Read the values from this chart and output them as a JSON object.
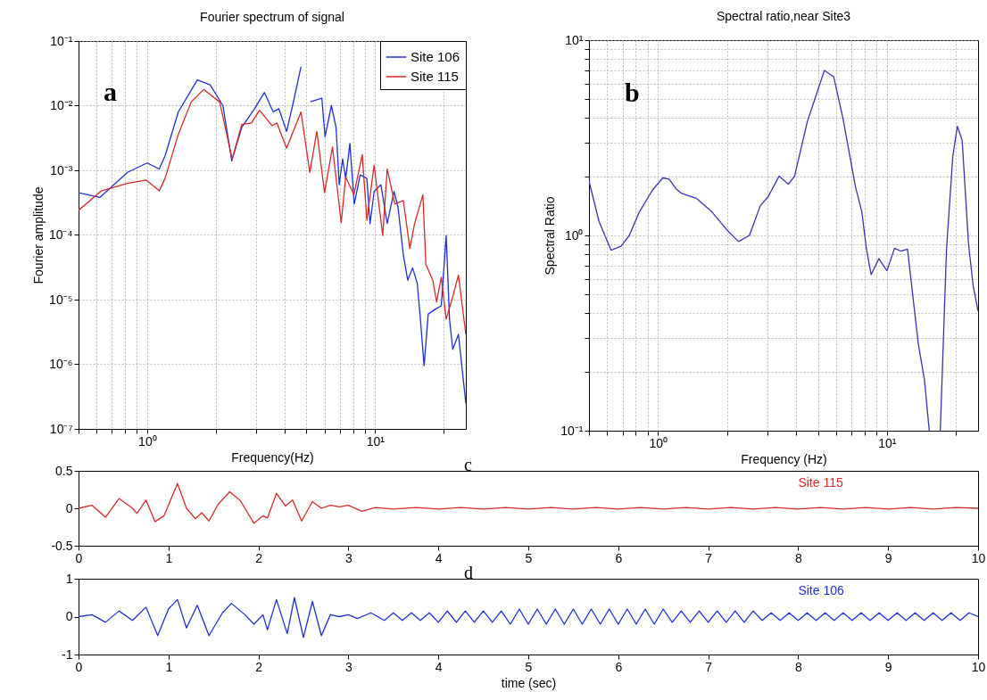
{
  "chart_data": [
    {
      "type": "line",
      "title": "Fourier spectrum of signal",
      "xlabel": "Frequency(Hz)",
      "ylabel": "Fourier amplitude",
      "log": "xy",
      "grid": true,
      "legend": "top right",
      "annotations": [
        "a"
      ],
      "xlim": [
        0.5,
        25
      ],
      "ylim": [
        1e-07,
        0.1
      ],
      "xticks": [
        {
          "value": 0.5,
          "label": null
        },
        {
          "value": 0.6,
          "label": null
        },
        {
          "value": 0.7,
          "label": null
        },
        {
          "value": 0.8,
          "label": null
        },
        {
          "value": 0.9,
          "label": null
        },
        {
          "value": 1,
          "label": "10⁰"
        },
        {
          "value": 2,
          "label": null
        },
        {
          "value": 3,
          "label": null
        },
        {
          "value": 4,
          "label": null
        },
        {
          "value": 5,
          "label": null
        },
        {
          "value": 6,
          "label": null
        },
        {
          "value": 7,
          "label": null
        },
        {
          "value": 8,
          "label": null
        },
        {
          "value": 9,
          "label": null
        },
        {
          "value": 10,
          "label": "10¹"
        },
        {
          "value": 20,
          "label": null
        }
      ],
      "yticks": [
        {
          "value": 1e-07,
          "label": "10⁻⁷"
        },
        {
          "value": 1e-06,
          "label": "10⁻⁶"
        },
        {
          "value": 1e-05,
          "label": "10⁻⁵"
        },
        {
          "value": 0.0001,
          "label": "10⁻⁴"
        },
        {
          "value": 0.001,
          "label": "10⁻³"
        },
        {
          "value": 0.01,
          "label": "10⁻²"
        },
        {
          "value": 0.1,
          "label": "10⁻¹"
        }
      ],
      "series": [
        {
          "name": "Site 106",
          "color": "#1f2fd0",
          "x": [
            0.5,
            0.62,
            0.82,
            1.0,
            1.13,
            1.2,
            1.37,
            1.66,
            1.89,
            2.15,
            2.35,
            2.6,
            2.96,
            3.27,
            3.57,
            3.78,
            4.09,
            4.37,
            4.73,
            5.0,
            5.2,
            5.84,
            6.03,
            6.43,
            6.74,
            6.96,
            7.2,
            7.43,
            7.75,
            8.1,
            8.6,
            9.2,
            9.5,
            9.9,
            10.6,
            11.3,
            12.1,
            12.6,
            13.3,
            13.9,
            14.6,
            15.3,
            15.8,
            16.4,
            17.1,
            18.6,
            19.5,
            20.5,
            21.2,
            21.9,
            23.2,
            25
          ],
          "values": [
            0.00045,
            0.00038,
            0.00093,
            0.0013,
            0.00105,
            0.0017,
            0.008,
            0.025,
            0.021,
            0.01,
            0.0014,
            0.0046,
            0.009,
            0.016,
            0.008,
            0.009,
            0.004,
            0.011,
            0.04,
            null,
            0.0115,
            0.013,
            0.0033,
            0.01,
            0.0046,
            0.0006,
            0.0015,
            0.00075,
            0.0026,
            0.0003,
            0.00085,
            0.00075,
            0.00015,
            0.00047,
            0.0006,
            0.00015,
            0.00047,
            0.00027,
            4.9e-05,
            2e-05,
            3.1e-05,
            1.8e-05,
            5e-06,
            9.5e-07,
            6e-06,
            7.3e-06,
            8e-06,
            9.8e-05,
            5e-06,
            1.7e-06,
            2.9e-06,
            2.5e-07
          ]
        },
        {
          "name": "Site 115",
          "color": "#d42a2a",
          "x": [
            0.5,
            0.63,
            0.82,
            0.99,
            1.13,
            1.2,
            1.37,
            1.56,
            1.77,
            2.08,
            2.36,
            2.6,
            2.87,
            3.11,
            3.53,
            3.71,
            4.09,
            4.73,
            5.17,
            5.55,
            6.0,
            6.5,
            7.1,
            7.43,
            8.07,
            8.78,
            9.2,
            9.9,
            10.8,
            11.3,
            12.2,
            13.3,
            14.2,
            14.9,
            16.2,
            16.7,
            17.9,
            18.6,
            19.5,
            20.5,
            21.9,
            23.2,
            25
          ],
          "values": [
            0.00024,
            0.00048,
            0.00063,
            0.00071,
            0.00048,
            0.00076,
            0.0036,
            0.0114,
            0.0178,
            0.0114,
            0.0015,
            0.0051,
            0.0054,
            0.0085,
            0.0049,
            0.0054,
            0.0022,
            0.008,
            0.00093,
            0.004,
            0.00045,
            0.0023,
            0.000155,
            0.00079,
            0.00042,
            0.00175,
            0.00017,
            0.0012,
            9.8e-05,
            0.00105,
            0.0003,
            0.00034,
            6.2e-05,
            0.00015,
            0.00042,
            3.5e-05,
            2e-05,
            9.2e-06,
            2.2e-05,
            5e-06,
            1.1e-05,
            2.4e-05,
            2.9e-06
          ]
        }
      ]
    },
    {
      "type": "line",
      "title": "Spectral ratio,near Site3",
      "xlabel": "Frequency (Hz)",
      "ylabel": "Spectral Ratio",
      "log": "xy",
      "grid": true,
      "annotations": [
        "b"
      ],
      "xlim": [
        0.5,
        25
      ],
      "ylim": [
        0.1,
        10
      ],
      "xticks": [
        {
          "value": 0.5,
          "label": null
        },
        {
          "value": 0.6,
          "label": null
        },
        {
          "value": 0.7,
          "label": null
        },
        {
          "value": 0.8,
          "label": null
        },
        {
          "value": 0.9,
          "label": null
        },
        {
          "value": 1,
          "label": "10⁰"
        },
        {
          "value": 2,
          "label": null
        },
        {
          "value": 3,
          "label": null
        },
        {
          "value": 4,
          "label": null
        },
        {
          "value": 5,
          "label": null
        },
        {
          "value": 6,
          "label": null
        },
        {
          "value": 7,
          "label": null
        },
        {
          "value": 8,
          "label": null
        },
        {
          "value": 9,
          "label": null
        },
        {
          "value": 10,
          "label": "10¹"
        },
        {
          "value": 20,
          "label": null
        }
      ],
      "yticks": [
        {
          "value": 0.1,
          "label": "10⁻¹"
        },
        {
          "value": 0.2,
          "label": null
        },
        {
          "value": 0.3,
          "label": null
        },
        {
          "value": 0.4,
          "label": null
        },
        {
          "value": 0.5,
          "label": null
        },
        {
          "value": 0.6,
          "label": null
        },
        {
          "value": 0.7,
          "label": null
        },
        {
          "value": 0.8,
          "label": null
        },
        {
          "value": 0.9,
          "label": null
        },
        {
          "value": 1,
          "label": "10⁰"
        },
        {
          "value": 2,
          "label": null
        },
        {
          "value": 3,
          "label": null
        },
        {
          "value": 4,
          "label": null
        },
        {
          "value": 5,
          "label": null
        },
        {
          "value": 6,
          "label": null
        },
        {
          "value": 7,
          "label": null
        },
        {
          "value": 8,
          "label": null
        },
        {
          "value": 9,
          "label": null
        },
        {
          "value": 10,
          "label": "10¹"
        }
      ],
      "x": [
        0.5,
        0.553,
        0.624,
        0.69,
        0.75,
        0.83,
        0.945,
        1.05,
        1.12,
        1.2,
        1.27,
        1.47,
        1.72,
        2.01,
        2.25,
        2.51,
        2.8,
        3.03,
        3.38,
        3.71,
        3.95,
        4.49,
        5.33,
        5.85,
        6.43,
        7.29,
        7.77,
        8.14,
        8.53,
        9.22,
        10.0,
        10.8,
        11.5,
        12.3,
        13.7,
        14.6,
        15.3,
        15.9,
        17.1,
        18.2,
        19.4,
        20.3,
        21.3,
        22.7,
        23.8,
        25
      ],
      "series": [
        {
          "color": "#3535b0",
          "values": [
            1.9,
            1.18,
            0.84,
            0.88,
            1.0,
            1.32,
            1.7,
            1.97,
            1.94,
            1.73,
            1.64,
            1.55,
            1.32,
            1.06,
            0.93,
            1.0,
            1.42,
            1.58,
            2.01,
            1.83,
            2.01,
            3.82,
            7.0,
            6.5,
            3.96,
            1.77,
            1.32,
            0.85,
            0.63,
            0.76,
            0.66,
            0.86,
            0.83,
            0.85,
            0.28,
            0.18,
            0.1,
            null,
            0.1,
            0.85,
            2.55,
            3.62,
            3.07,
            0.91,
            0.55,
            0.41
          ]
        }
      ]
    },
    {
      "type": "line",
      "annotations": [
        "c"
      ],
      "xlim": [
        0,
        10
      ],
      "ylim": [
        -0.5,
        0.5
      ],
      "xticks": [
        0,
        1,
        2,
        3,
        4,
        5,
        6,
        7,
        8,
        9,
        10
      ],
      "yticks": [
        -0.5,
        0,
        0.5
      ],
      "series": [
        {
          "name": "Site 115",
          "color": "#d42a2a",
          "x": [
            0,
            0.15,
            0.3,
            0.45,
            0.6,
            0.65,
            0.75,
            0.85,
            0.95,
            1.1,
            1.2,
            1.3,
            1.37,
            1.45,
            1.55,
            1.68,
            1.8,
            1.85,
            1.95,
            2.05,
            2.1,
            2.2,
            2.3,
            2.38,
            2.48,
            2.6,
            2.7,
            2.8,
            2.9,
            3.0,
            3.15,
            3.3,
            3.5,
            3.75,
            4.0,
            4.25,
            4.5,
            4.75,
            5.0,
            5.25,
            5.5,
            5.75,
            6.0,
            6.25,
            6.5,
            6.75,
            7.0,
            7.25,
            7.5,
            7.75,
            8.0,
            8.25,
            8.5,
            8.75,
            9.0,
            9.25,
            9.5,
            9.75,
            10
          ],
          "values": [
            0,
            0.04,
            -0.12,
            0.13,
            0.0,
            -0.07,
            0.11,
            -0.18,
            -0.1,
            0.33,
            0.0,
            -0.14,
            -0.06,
            -0.17,
            0.05,
            0.22,
            0.1,
            0.0,
            -0.2,
            -0.1,
            -0.13,
            0.2,
            0.03,
            0.11,
            -0.17,
            0.09,
            0.0,
            0.04,
            0.02,
            0.04,
            -0.04,
            0.01,
            -0.01,
            0.01,
            -0.01,
            0.01,
            -0.01,
            0.01,
            -0.01,
            0.01,
            -0.01,
            0.01,
            -0.01,
            0.01,
            -0.01,
            0.01,
            -0.01,
            0.01,
            -0.01,
            0.01,
            -0.01,
            0.01,
            -0.01,
            0.01,
            -0.01,
            0.01,
            -0.01,
            0.01,
            0
          ]
        }
      ]
    },
    {
      "type": "line",
      "xlabel": "time (sec)",
      "annotations": [
        "d"
      ],
      "xlim": [
        0,
        10
      ],
      "ylim": [
        -1,
        1
      ],
      "xticks": [
        0,
        1,
        2,
        3,
        4,
        5,
        6,
        7,
        8,
        9,
        10
      ],
      "yticks": [
        -1,
        0,
        1
      ],
      "series": [
        {
          "name": "Site 106",
          "color": "#1f2fd0",
          "x": [
            0,
            0.15,
            0.3,
            0.45,
            0.6,
            0.75,
            0.88,
            1.0,
            1.1,
            1.2,
            1.32,
            1.45,
            1.6,
            1.7,
            1.85,
            1.95,
            2.05,
            2.1,
            2.2,
            2.32,
            2.4,
            2.5,
            2.6,
            2.7,
            2.8,
            2.9,
            3.0,
            3.1,
            3.25,
            3.4,
            3.5,
            3.6,
            3.7,
            3.8,
            3.9,
            4.0,
            4.1,
            4.2,
            4.3,
            4.4,
            4.5,
            4.6,
            4.7,
            4.8,
            4.9,
            5.0,
            5.1,
            5.2,
            5.3,
            5.4,
            5.5,
            5.6,
            5.7,
            5.8,
            5.9,
            6.0,
            6.1,
            6.2,
            6.3,
            6.4,
            6.5,
            6.6,
            6.7,
            6.8,
            6.9,
            7.0,
            7.1,
            7.2,
            7.3,
            7.4,
            7.5,
            7.6,
            7.7,
            7.8,
            7.9,
            8.0,
            8.1,
            8.2,
            8.3,
            8.4,
            8.5,
            8.6,
            8.7,
            8.8,
            8.9,
            9.0,
            9.1,
            9.2,
            9.3,
            9.4,
            9.5,
            9.6,
            9.7,
            9.8,
            9.9,
            10.0
          ],
          "values": [
            0,
            0.05,
            -0.15,
            0.15,
            -0.1,
            0.25,
            -0.5,
            0.2,
            0.45,
            -0.3,
            0.3,
            -0.5,
            0.1,
            0.35,
            0.05,
            -0.2,
            0.05,
            -0.35,
            0.45,
            -0.45,
            0.5,
            -0.55,
            0.4,
            -0.5,
            0.05,
            0.0,
            0.05,
            -0.05,
            0.1,
            -0.1,
            0.1,
            -0.1,
            0.1,
            -0.1,
            0.1,
            -0.15,
            0.15,
            -0.15,
            0.15,
            -0.15,
            0.15,
            -0.15,
            0.15,
            -0.2,
            0.2,
            -0.2,
            0.2,
            -0.2,
            0.2,
            -0.2,
            0.2,
            -0.2,
            0.2,
            -0.2,
            0.2,
            -0.2,
            0.2,
            -0.2,
            0.2,
            -0.2,
            0.2,
            -0.15,
            0.15,
            -0.15,
            0.15,
            -0.15,
            0.15,
            -0.15,
            0.15,
            -0.15,
            0.15,
            -0.1,
            0.1,
            -0.1,
            0.1,
            -0.1,
            0.1,
            -0.1,
            0.1,
            -0.1,
            0.1,
            -0.1,
            0.1,
            -0.1,
            0.1,
            -0.1,
            0.1,
            -0.1,
            0.1,
            -0.1,
            0.1,
            -0.1,
            0.1,
            -0.1,
            0.1,
            0
          ]
        }
      ]
    }
  ]
}
